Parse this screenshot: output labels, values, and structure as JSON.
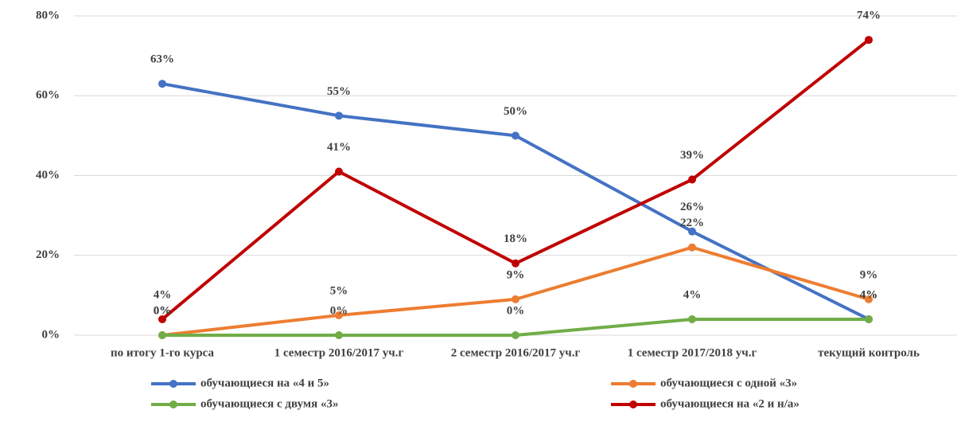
{
  "chart_data": {
    "type": "line",
    "categories": [
      "по итогу 1-го курса",
      "1 семестр 2016/2017 уч.г",
      "2 семестр 2016/2017 уч.г",
      "1 семестр 2017/2018 уч.г",
      "текущий контроль"
    ],
    "series": [
      {
        "name": "обучающиеся на «4 и 5»",
        "color": "#4472c4",
        "values": [
          63,
          55,
          50,
          26,
          4
        ],
        "value_labels": [
          "63%",
          "55%",
          "50%",
          "26%",
          "4%"
        ]
      },
      {
        "name": "обучающиеся с одной «3»",
        "color": "#ed7d31",
        "values": [
          0,
          5,
          9,
          22,
          9
        ],
        "value_labels": [
          "0%",
          "5%",
          "9%",
          "22%",
          "9%"
        ]
      },
      {
        "name": "обучающиеся с двумя «3»",
        "color": "#70ad47",
        "values": [
          0,
          0,
          0,
          4,
          4
        ],
        "value_labels": [
          "0%",
          "0%",
          "0%",
          "4%",
          "4%"
        ]
      },
      {
        "name": "обучающиеся на «2 и н/а»",
        "color": "#c00000",
        "values": [
          4,
          41,
          18,
          39,
          74
        ],
        "value_labels": [
          "4%",
          "41%",
          "18%",
          "39%",
          "74%"
        ]
      }
    ],
    "ylim": [
      0,
      80
    ],
    "yticks": [
      {
        "value": 0,
        "label": "0%"
      },
      {
        "value": 20,
        "label": "20%"
      },
      {
        "value": 40,
        "label": "40%"
      },
      {
        "value": 60,
        "label": "60%"
      },
      {
        "value": 80,
        "label": "80%"
      }
    ],
    "grid": true
  }
}
